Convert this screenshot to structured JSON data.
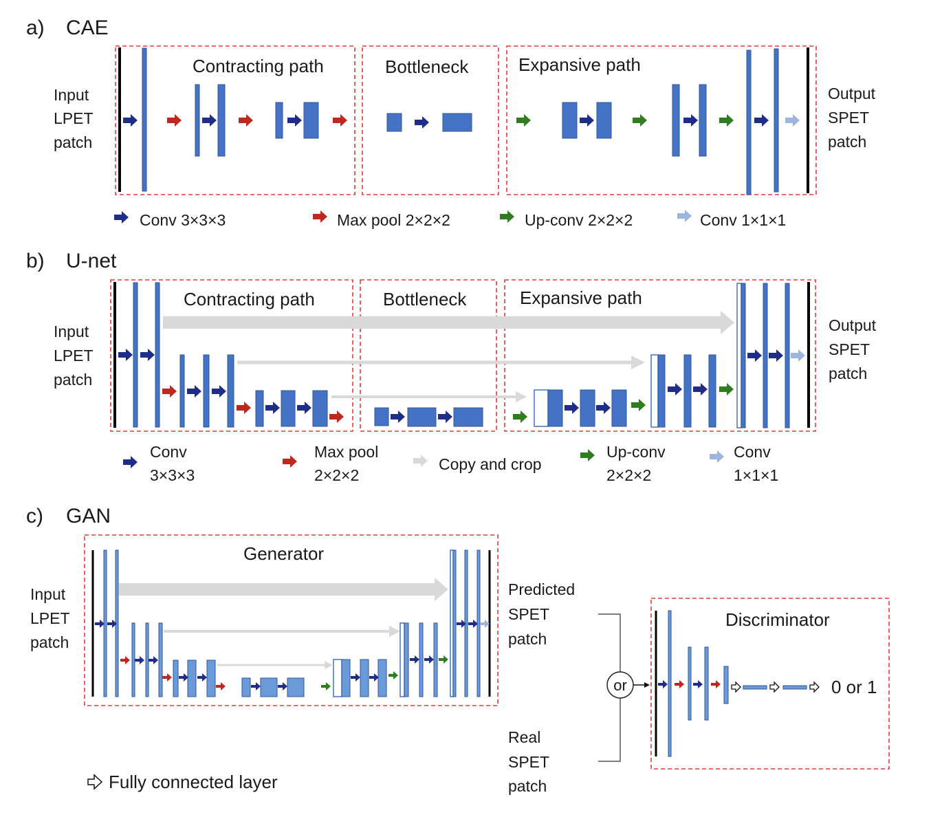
{
  "colors": {
    "block": "#4472C4",
    "block_light": "#6A9AD8",
    "conv_arrow": "#1F2D8A",
    "pool_arrow": "#C0281E",
    "upconv_arrow": "#2E7D1E",
    "conv1_arrow": "#9DB6E0",
    "copy_arrow": "#D9D9D9",
    "dashed_box": "#E23B3B",
    "edge": "#000000"
  },
  "panel_a": {
    "tag": "a)",
    "title": "CAE",
    "sections": [
      "Contracting path",
      "Bottleneck",
      "Expansive path"
    ],
    "input_label": [
      "Input",
      "LPET",
      "patch"
    ],
    "output_label": [
      "Output",
      "SPET",
      "patch"
    ],
    "legend": [
      {
        "icon": "conv-arrow-icon",
        "text": "Conv 3×3×3"
      },
      {
        "icon": "max-pool-arrow-icon",
        "text": "Max pool 2×2×2"
      },
      {
        "icon": "up-conv-arrow-icon",
        "text": "Up-conv 2×2×2"
      },
      {
        "icon": "conv-1x1-arrow-icon",
        "text": "Conv 1×1×1"
      }
    ]
  },
  "panel_b": {
    "tag": "b)",
    "title": "U-net",
    "sections": [
      "Contracting path",
      "Bottleneck",
      "Expansive path"
    ],
    "input_label": [
      "Input",
      "LPET",
      "patch"
    ],
    "output_label": [
      "Output",
      "SPET",
      "patch"
    ],
    "legend": [
      {
        "icon": "conv-arrow-icon",
        "lines": [
          "Conv",
          "3×3×3"
        ]
      },
      {
        "icon": "max-pool-arrow-icon",
        "lines": [
          "Max pool",
          "2×2×2"
        ]
      },
      {
        "icon": "copy-and-crop-arrow-icon",
        "lines": [
          "Copy and crop"
        ]
      },
      {
        "icon": "up-conv-arrow-icon",
        "lines": [
          "Up-conv",
          "2×2×2"
        ]
      },
      {
        "icon": "conv-1x1-arrow-icon",
        "lines": [
          "Conv",
          "1×1×1"
        ]
      }
    ]
  },
  "panel_c": {
    "tag": "c)",
    "title": "GAN",
    "generator_title": "Generator",
    "discriminator_title": "Discriminator",
    "input_label": [
      "Input",
      "LPET",
      "patch"
    ],
    "predicted_label": [
      "Predicted",
      "SPET",
      "patch"
    ],
    "real_label": [
      "Real",
      "SPET",
      "patch"
    ],
    "or_label": "or",
    "output_value": "0 or 1",
    "fc_legend": "Fully connected layer"
  }
}
